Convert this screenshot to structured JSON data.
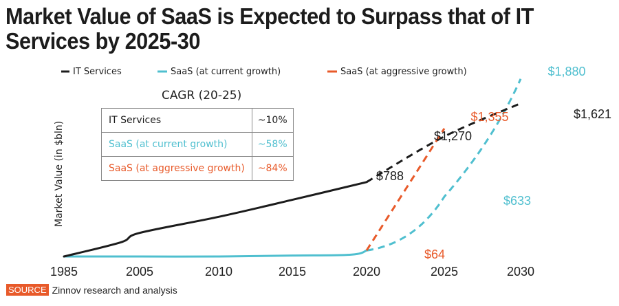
{
  "title": "Market Value of SaaS is Expected to Surpass that of IT Services by 2025-30",
  "source": {
    "badge": "SOURCE",
    "text": "Zinnov research and analysis"
  },
  "colors": {
    "it_services": "#1c1c1c",
    "saas_current": "#4fbfcf",
    "saas_aggressive": "#e85a2a"
  },
  "cagr_table": {
    "title": "CAGR (20-25)",
    "rows": [
      {
        "label": "IT Services",
        "value": "~10%",
        "series": "it_services"
      },
      {
        "label": "SaaS (at current growth)",
        "value": "~58%",
        "series": "saas_current"
      },
      {
        "label": "SaaS (at aggressive growth)",
        "value": "~84%",
        "series": "saas_aggressive"
      }
    ]
  },
  "chart_data": {
    "type": "line",
    "title": "Market Value of SaaS is Expected to Surpass that of IT Services by 2025-30",
    "xlabel": "",
    "ylabel": "Market Value (in $bln)",
    "x_ticks": [
      "1985",
      "2005",
      "2010",
      "2015",
      "2020",
      "2025",
      "2030"
    ],
    "ylim": [
      0,
      1900
    ],
    "grid": false,
    "legend": {
      "placement": "top",
      "entries": [
        "IT Services",
        "SaaS (at current growth)",
        "SaaS (at aggressive growth)"
      ]
    },
    "series": [
      {
        "name": "IT Services",
        "color": "#1c1c1c",
        "actual": {
          "x": [
            1985,
            2000,
            2005,
            2010,
            2015,
            2020
          ],
          "y": [
            0,
            150,
            250,
            420,
            600,
            788
          ]
        },
        "projected": {
          "x": [
            2020,
            2025,
            2030
          ],
          "y": [
            788,
            1270,
            1621
          ]
        }
      },
      {
        "name": "SaaS (at current growth)",
        "color": "#4fbfcf",
        "actual": {
          "x": [
            1985,
            2005,
            2010,
            2015,
            2019,
            2020
          ],
          "y": [
            0,
            0,
            0,
            10,
            20,
            64
          ]
        },
        "projected": {
          "x": [
            2020,
            2025,
            2030
          ],
          "y": [
            64,
            633,
            1880
          ]
        }
      },
      {
        "name": "SaaS (at aggressive growth)",
        "color": "#e85a2a",
        "actual": {
          "x": [],
          "y": []
        },
        "projected": {
          "x": [
            2020,
            2025
          ],
          "y": [
            64,
            1355
          ]
        }
      }
    ],
    "annotations": [
      {
        "text": "$788",
        "x": 2020,
        "y": 788,
        "series": "IT Services"
      },
      {
        "text": "$1,270",
        "x": 2025,
        "y": 1270,
        "series": "IT Services"
      },
      {
        "text": "$1,621",
        "x": 2030,
        "y": 1621,
        "series": "IT Services"
      },
      {
        "text": "$64",
        "x": 2020,
        "y": 64,
        "series": "SaaS (at aggressive growth)"
      },
      {
        "text": "$633",
        "x": 2025,
        "y": 633,
        "series": "SaaS (at current growth)"
      },
      {
        "text": "$1,880",
        "x": 2030,
        "y": 1880,
        "series": "SaaS (at current growth)"
      },
      {
        "text": "$1,355",
        "x": 2025,
        "y": 1355,
        "series": "SaaS (at aggressive growth)"
      }
    ]
  }
}
